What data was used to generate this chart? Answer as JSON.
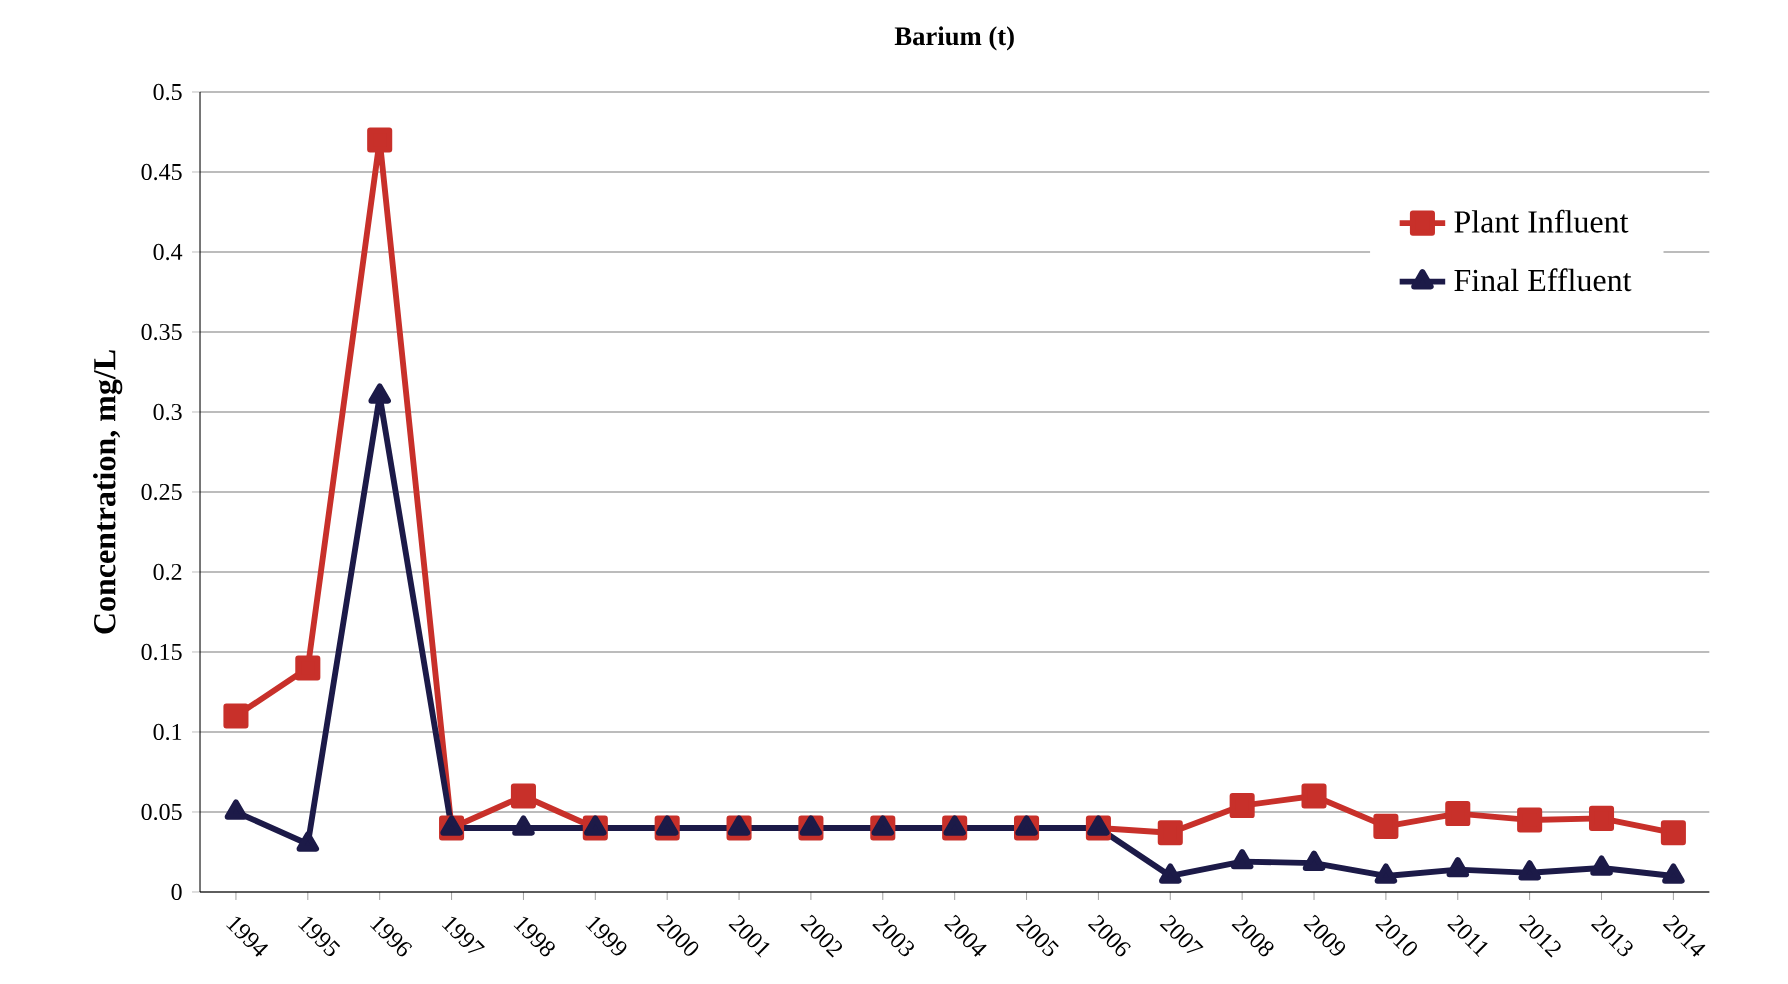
{
  "chart_data": {
    "type": "line",
    "title": "Barium (t)",
    "ylabel": "Concentration, mg/L",
    "categories": [
      "1994",
      "1995",
      "1996",
      "1997",
      "1998",
      "1999",
      "2000",
      "2001",
      "2002",
      "2003",
      "2004",
      "2005",
      "2006",
      "2007",
      "2008",
      "2009",
      "2010",
      "2011",
      "2012",
      "2013",
      "2014"
    ],
    "series": [
      {
        "name": "Plant Influent",
        "color": "#c8302a",
        "marker": "square",
        "values": [
          0.11,
          0.14,
          0.47,
          0.04,
          0.06,
          0.04,
          0.04,
          0.04,
          0.04,
          0.04,
          0.04,
          0.04,
          0.04,
          0.037,
          0.054,
          0.06,
          0.041,
          0.049,
          0.045,
          0.046,
          0.037
        ]
      },
      {
        "name": "Final Effluent",
        "color": "#1c1a48",
        "marker": "triangle",
        "values": [
          0.05,
          0.03,
          0.31,
          0.04,
          0.04,
          0.04,
          0.04,
          0.04,
          0.04,
          0.04,
          0.04,
          0.04,
          0.04,
          0.01,
          0.019,
          0.018,
          0.01,
          0.014,
          0.012,
          0.015,
          0.01
        ]
      }
    ],
    "ylim": [
      0,
      0.5
    ],
    "yticks": [
      0,
      0.05,
      0.1,
      0.15,
      0.2,
      0.25,
      0.3,
      0.35,
      0.4,
      0.45,
      0.5
    ],
    "grid": "y",
    "legend": "top right",
    "line_style": "solid"
  }
}
